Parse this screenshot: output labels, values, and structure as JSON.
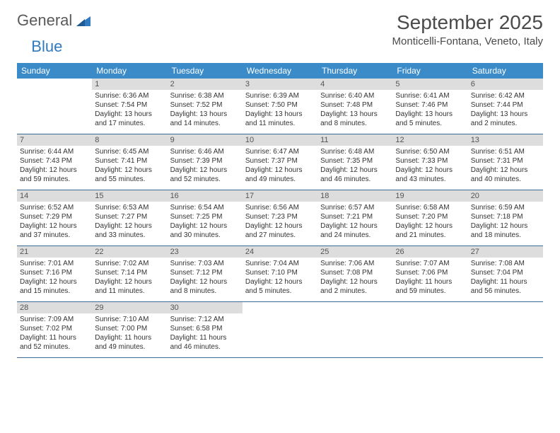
{
  "logo": {
    "word1": "General",
    "word2": "Blue"
  },
  "title": "September 2025",
  "location": "Monticelli-Fontana, Veneto, Italy",
  "colors": {
    "header_bg": "#3b8bc9",
    "header_text": "#ffffff",
    "daynum_bg": "#dddddd",
    "row_border": "#3b6a96",
    "logo_blue": "#2f7ac0"
  },
  "days_of_week": [
    "Sunday",
    "Monday",
    "Tuesday",
    "Wednesday",
    "Thursday",
    "Friday",
    "Saturday"
  ],
  "weeks": [
    [
      {
        "n": "",
        "sunrise": "",
        "sunset": "",
        "daylight": ""
      },
      {
        "n": "1",
        "sunrise": "6:36 AM",
        "sunset": "7:54 PM",
        "daylight": "13 hours and 17 minutes."
      },
      {
        "n": "2",
        "sunrise": "6:38 AM",
        "sunset": "7:52 PM",
        "daylight": "13 hours and 14 minutes."
      },
      {
        "n": "3",
        "sunrise": "6:39 AM",
        "sunset": "7:50 PM",
        "daylight": "13 hours and 11 minutes."
      },
      {
        "n": "4",
        "sunrise": "6:40 AM",
        "sunset": "7:48 PM",
        "daylight": "13 hours and 8 minutes."
      },
      {
        "n": "5",
        "sunrise": "6:41 AM",
        "sunset": "7:46 PM",
        "daylight": "13 hours and 5 minutes."
      },
      {
        "n": "6",
        "sunrise": "6:42 AM",
        "sunset": "7:44 PM",
        "daylight": "13 hours and 2 minutes."
      }
    ],
    [
      {
        "n": "7",
        "sunrise": "6:44 AM",
        "sunset": "7:43 PM",
        "daylight": "12 hours and 59 minutes."
      },
      {
        "n": "8",
        "sunrise": "6:45 AM",
        "sunset": "7:41 PM",
        "daylight": "12 hours and 55 minutes."
      },
      {
        "n": "9",
        "sunrise": "6:46 AM",
        "sunset": "7:39 PM",
        "daylight": "12 hours and 52 minutes."
      },
      {
        "n": "10",
        "sunrise": "6:47 AM",
        "sunset": "7:37 PM",
        "daylight": "12 hours and 49 minutes."
      },
      {
        "n": "11",
        "sunrise": "6:48 AM",
        "sunset": "7:35 PM",
        "daylight": "12 hours and 46 minutes."
      },
      {
        "n": "12",
        "sunrise": "6:50 AM",
        "sunset": "7:33 PM",
        "daylight": "12 hours and 43 minutes."
      },
      {
        "n": "13",
        "sunrise": "6:51 AM",
        "sunset": "7:31 PM",
        "daylight": "12 hours and 40 minutes."
      }
    ],
    [
      {
        "n": "14",
        "sunrise": "6:52 AM",
        "sunset": "7:29 PM",
        "daylight": "12 hours and 37 minutes."
      },
      {
        "n": "15",
        "sunrise": "6:53 AM",
        "sunset": "7:27 PM",
        "daylight": "12 hours and 33 minutes."
      },
      {
        "n": "16",
        "sunrise": "6:54 AM",
        "sunset": "7:25 PM",
        "daylight": "12 hours and 30 minutes."
      },
      {
        "n": "17",
        "sunrise": "6:56 AM",
        "sunset": "7:23 PM",
        "daylight": "12 hours and 27 minutes."
      },
      {
        "n": "18",
        "sunrise": "6:57 AM",
        "sunset": "7:21 PM",
        "daylight": "12 hours and 24 minutes."
      },
      {
        "n": "19",
        "sunrise": "6:58 AM",
        "sunset": "7:20 PM",
        "daylight": "12 hours and 21 minutes."
      },
      {
        "n": "20",
        "sunrise": "6:59 AM",
        "sunset": "7:18 PM",
        "daylight": "12 hours and 18 minutes."
      }
    ],
    [
      {
        "n": "21",
        "sunrise": "7:01 AM",
        "sunset": "7:16 PM",
        "daylight": "12 hours and 15 minutes."
      },
      {
        "n": "22",
        "sunrise": "7:02 AM",
        "sunset": "7:14 PM",
        "daylight": "12 hours and 11 minutes."
      },
      {
        "n": "23",
        "sunrise": "7:03 AM",
        "sunset": "7:12 PM",
        "daylight": "12 hours and 8 minutes."
      },
      {
        "n": "24",
        "sunrise": "7:04 AM",
        "sunset": "7:10 PM",
        "daylight": "12 hours and 5 minutes."
      },
      {
        "n": "25",
        "sunrise": "7:06 AM",
        "sunset": "7:08 PM",
        "daylight": "12 hours and 2 minutes."
      },
      {
        "n": "26",
        "sunrise": "7:07 AM",
        "sunset": "7:06 PM",
        "daylight": "11 hours and 59 minutes."
      },
      {
        "n": "27",
        "sunrise": "7:08 AM",
        "sunset": "7:04 PM",
        "daylight": "11 hours and 56 minutes."
      }
    ],
    [
      {
        "n": "28",
        "sunrise": "7:09 AM",
        "sunset": "7:02 PM",
        "daylight": "11 hours and 52 minutes."
      },
      {
        "n": "29",
        "sunrise": "7:10 AM",
        "sunset": "7:00 PM",
        "daylight": "11 hours and 49 minutes."
      },
      {
        "n": "30",
        "sunrise": "7:12 AM",
        "sunset": "6:58 PM",
        "daylight": "11 hours and 46 minutes."
      },
      {
        "n": "",
        "sunrise": "",
        "sunset": "",
        "daylight": ""
      },
      {
        "n": "",
        "sunrise": "",
        "sunset": "",
        "daylight": ""
      },
      {
        "n": "",
        "sunrise": "",
        "sunset": "",
        "daylight": ""
      },
      {
        "n": "",
        "sunrise": "",
        "sunset": "",
        "daylight": ""
      }
    ]
  ]
}
